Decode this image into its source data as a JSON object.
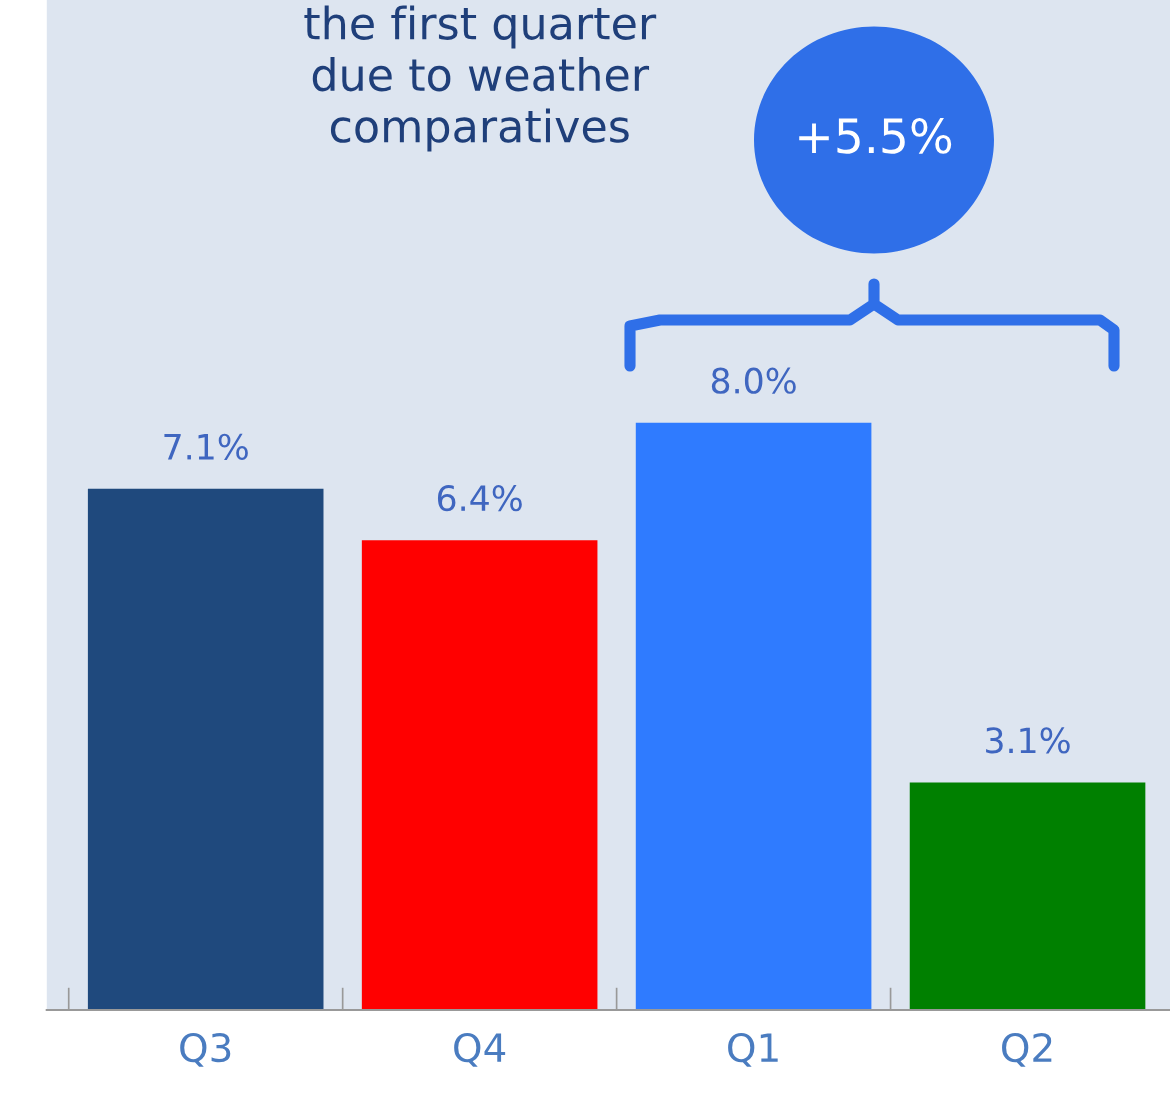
{
  "chart_data": {
    "type": "bar",
    "categories": [
      "Q3",
      "Q4",
      "Q1",
      "Q2"
    ],
    "values": [
      7.1,
      6.4,
      8.0,
      3.1
    ],
    "colors": [
      "#1f497d",
      "#ff0000",
      "#2f7bff",
      "#008000"
    ],
    "value_labels": [
      "7.1%",
      "6.4%",
      "8.0%",
      "3.1%"
    ],
    "annotations": [
      "the first quarter\ndue to weather\ncomparatives",
      "+5.5%"
    ],
    "grid": false,
    "legend": false
  }
}
